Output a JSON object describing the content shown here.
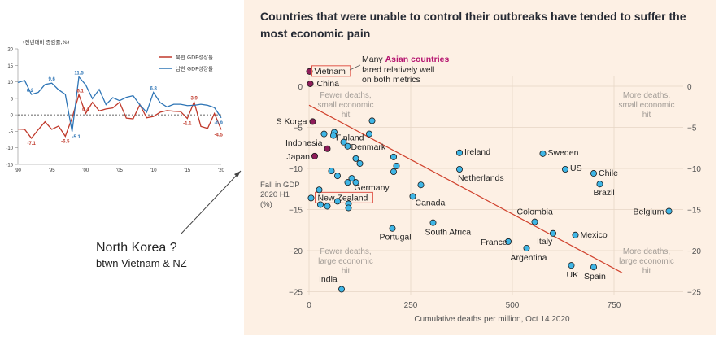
{
  "chart_data": [
    {
      "type": "line",
      "title": "",
      "ylabel": "(전년대비 증감률,%)",
      "ylim": [
        -15,
        20
      ],
      "y_ticks": [
        "20",
        "15",
        "10",
        "5",
        "0",
        "-5",
        "-10",
        "-15"
      ],
      "x_ticks": [
        "'90",
        "'95",
        "'00",
        "'05",
        "'10",
        "'15",
        "'20"
      ],
      "series": [
        {
          "name": "북한 GDP성장률",
          "color": "#c0392b",
          "x": [
            1990,
            1991,
            1992,
            1993,
            1994,
            1995,
            1996,
            1997,
            1998,
            1999,
            2000,
            2001,
            2002,
            2003,
            2004,
            2005,
            2006,
            2007,
            2008,
            2009,
            2010,
            2011,
            2012,
            2013,
            2014,
            2015,
            2016,
            2017,
            2018,
            2019,
            2020
          ],
          "values": [
            -4.3,
            -4.4,
            -7.1,
            -4.5,
            -2.1,
            -4.4,
            -3.4,
            -6.5,
            -0.9,
            6.1,
            0.4,
            3.8,
            1.2,
            1.8,
            2.1,
            3.8,
            -1.0,
            -1.2,
            3.1,
            -0.9,
            -0.5,
            0.8,
            1.3,
            1.1,
            1.0,
            -1.1,
            3.9,
            -3.5,
            -4.1,
            0.4,
            -4.5
          ]
        },
        {
          "name": "남한 GDP성장률",
          "color": "#2e75b6",
          "x": [
            1990,
            1991,
            1992,
            1993,
            1994,
            1995,
            1996,
            1997,
            1998,
            1999,
            2000,
            2001,
            2002,
            2003,
            2004,
            2005,
            2006,
            2007,
            2008,
            2009,
            2010,
            2011,
            2012,
            2013,
            2014,
            2015,
            2016,
            2017,
            2018,
            2019,
            2020
          ],
          "values": [
            9.8,
            10.4,
            6.2,
            6.8,
            9.2,
            9.6,
            7.6,
            6.2,
            -5.1,
            11.5,
            9.1,
            4.9,
            7.7,
            3.1,
            5.2,
            4.3,
            5.3,
            5.8,
            3.0,
            0.8,
            6.8,
            3.7,
            2.4,
            3.2,
            3.2,
            2.8,
            2.9,
            3.2,
            2.9,
            2.2,
            -0.9
          ]
        }
      ],
      "annotations": [
        {
          "x": 1992,
          "y": -7.1,
          "text": "-7.1",
          "color": "#c0392b"
        },
        {
          "x": 1991.8,
          "y": 6.2,
          "text": "6.2",
          "color": "#2e75b6"
        },
        {
          "x": 1995,
          "y": 9.6,
          "text": "9.6",
          "color": "#2e75b6"
        },
        {
          "x": 1997,
          "y": -6.5,
          "text": "-6.5",
          "color": "#c0392b"
        },
        {
          "x": 1998.6,
          "y": -5.1,
          "text": "-5.1",
          "color": "#2e75b6"
        },
        {
          "x": 1999,
          "y": 11.5,
          "text": "11.5",
          "color": "#2e75b6"
        },
        {
          "x": 1999.2,
          "y": 6.1,
          "text": "6.1",
          "color": "#c0392b"
        },
        {
          "x": 2000,
          "y": 0.4,
          "text": "0.4",
          "color": "#c0392b"
        },
        {
          "x": 2010,
          "y": 6.8,
          "text": "6.8",
          "color": "#2e75b6"
        },
        {
          "x": 2015,
          "y": -1.1,
          "text": "-1.1",
          "color": "#c0392b"
        },
        {
          "x": 2016,
          "y": 3.9,
          "text": "3.9",
          "color": "#c0392b"
        },
        {
          "x": 2019.6,
          "y": -0.9,
          "text": "-0.9",
          "color": "#2e75b6"
        },
        {
          "x": 2019.6,
          "y": -4.5,
          "text": "-4.5",
          "color": "#c0392b"
        }
      ]
    },
    {
      "type": "scatter",
      "title": "Countries that were unable to control their outbreaks have tended to suffer the most economic pain",
      "xlabel": "Cumulative deaths per million, Oct 14 2020",
      "ylabel": [
        "Fall in GDP",
        "2020 H1",
        "(%)"
      ],
      "xlim": [
        0,
        900
      ],
      "ylim": [
        -26,
        2
      ],
      "x_ticks": [
        0,
        250,
        500,
        750
      ],
      "y_ticks": [
        0,
        -5,
        -10,
        -15,
        -20,
        -25
      ],
      "grid": true,
      "colors": {
        "point": "#3fb6e6",
        "asian_point": "#8e1d5a",
        "trend": "#d0412c",
        "highlight": "#e0574a",
        "asian_text": "#b5146f"
      },
      "trend_line": {
        "from": [
          0,
          -2.3
        ],
        "to": [
          770,
          -22.7
        ]
      },
      "points": [
        {
          "label": "Vietnam",
          "x": 1,
          "y": 1.8,
          "group": "asian",
          "boxed": true
        },
        {
          "label": "China",
          "x": 3,
          "y": 0.3,
          "group": "asian"
        },
        {
          "label": "S Korea",
          "x": 9,
          "y": -4.3,
          "group": "asian"
        },
        {
          "label": "Indonesia",
          "x": 45,
          "y": -7.6,
          "group": "asian"
        },
        {
          "label": "Japan",
          "x": 14,
          "y": -8.5,
          "group": "asian"
        },
        {
          "label": "Finland",
          "x": 62,
          "y": -5.6
        },
        {
          "label": "Denmark",
          "x": 115,
          "y": -8.8
        },
        {
          "label": "Germany",
          "x": 115,
          "y": -11.7
        },
        {
          "label": "New Zealand",
          "x": 5,
          "y": -13.6,
          "boxed": true
        },
        {
          "label": "Canada",
          "x": 255,
          "y": -13.4
        },
        {
          "label": "Portugal",
          "x": 205,
          "y": -17.3
        },
        {
          "label": "South Africa",
          "x": 305,
          "y": -16.6
        },
        {
          "label": "Ireland",
          "x": 370,
          "y": -8.1
        },
        {
          "label": "Netherlands",
          "x": 370,
          "y": -10.1
        },
        {
          "label": "Sweden",
          "x": 575,
          "y": -8.2
        },
        {
          "label": "US",
          "x": 630,
          "y": -10.1
        },
        {
          "label": "Chile",
          "x": 700,
          "y": -10.6
        },
        {
          "label": "Brazil",
          "x": 715,
          "y": -11.9
        },
        {
          "label": "Colombia",
          "x": 555,
          "y": -16.5
        },
        {
          "label": "Italy",
          "x": 600,
          "y": -17.9
        },
        {
          "label": "Mexico",
          "x": 655,
          "y": -18.1
        },
        {
          "label": "France",
          "x": 490,
          "y": -18.9
        },
        {
          "label": "Argentina",
          "x": 535,
          "y": -19.7
        },
        {
          "label": "UK",
          "x": 645,
          "y": -21.8
        },
        {
          "label": "Spain",
          "x": 700,
          "y": -22.0
        },
        {
          "label": "Belgium",
          "x": 885,
          "y": -15.2
        },
        {
          "label": "India",
          "x": 80,
          "y": -24.7
        },
        {
          "label": "",
          "x": 60,
          "y": -6.0
        },
        {
          "label": "",
          "x": 37,
          "y": -5.8
        },
        {
          "label": "",
          "x": 95,
          "y": -7.3
        },
        {
          "label": "",
          "x": 148,
          "y": -5.8
        },
        {
          "label": "",
          "x": 155,
          "y": -4.2
        },
        {
          "label": "",
          "x": 85,
          "y": -6.8
        },
        {
          "label": "",
          "x": 125,
          "y": -9.4
        },
        {
          "label": "",
          "x": 208,
          "y": -8.6
        },
        {
          "label": "",
          "x": 215,
          "y": -9.7
        },
        {
          "label": "",
          "x": 208,
          "y": -10.4
        },
        {
          "label": "",
          "x": 55,
          "y": -10.3
        },
        {
          "label": "",
          "x": 105,
          "y": -11.2
        },
        {
          "label": "",
          "x": 95,
          "y": -11.7
        },
        {
          "label": "",
          "x": 70,
          "y": -10.9
        },
        {
          "label": "",
          "x": 25,
          "y": -12.6
        },
        {
          "label": "",
          "x": 275,
          "y": -12.0
        },
        {
          "label": "",
          "x": 28,
          "y": -14.4
        },
        {
          "label": "",
          "x": 45,
          "y": -14.6
        },
        {
          "label": "",
          "x": 70,
          "y": -14.0
        },
        {
          "label": "",
          "x": 97,
          "y": -14.3
        },
        {
          "label": "",
          "x": 97,
          "y": -14.8
        }
      ],
      "annotations": [
        {
          "lines": [
            {
              "t": "Many "
            },
            {
              "t": "Asian countries",
              "highlight": true
            },
            {
              "t": ""
            }
          ],
          "text2": [
            "fared relatively well",
            "on both metrics"
          ]
        }
      ],
      "quadrant_labels": [
        {
          "pos": "top-left",
          "lines": [
            "Fewer deaths,",
            "small economic",
            "hit"
          ]
        },
        {
          "pos": "top-right",
          "lines": [
            "More deaths,",
            "small economic",
            "hit"
          ]
        },
        {
          "pos": "bottom-left",
          "lines": [
            "Fewer deaths,",
            "large economic",
            "hit"
          ]
        },
        {
          "pos": "bottom-right",
          "lines": [
            "More deaths,",
            "large economic",
            "hit"
          ]
        }
      ]
    }
  ],
  "note": {
    "title": "North Korea ?",
    "subtitle": "btwn Vietnam & NZ"
  }
}
